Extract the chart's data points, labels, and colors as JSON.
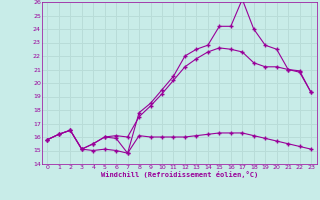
{
  "xlabel": "Windchill (Refroidissement éolien,°C)",
  "background_color": "#c8ece8",
  "line_color": "#990099",
  "grid_color": "#b8dcd8",
  "xlim": [
    -0.5,
    23.5
  ],
  "ylim": [
    14,
    26
  ],
  "xticks": [
    0,
    1,
    2,
    3,
    4,
    5,
    6,
    7,
    8,
    9,
    10,
    11,
    12,
    13,
    14,
    15,
    16,
    17,
    18,
    19,
    20,
    21,
    22,
    23
  ],
  "yticks": [
    14,
    15,
    16,
    17,
    18,
    19,
    20,
    21,
    22,
    23,
    24,
    25,
    26
  ],
  "lines": [
    {
      "x": [
        0,
        1,
        2,
        3,
        4,
        5,
        6,
        7,
        8,
        9,
        10,
        11,
        12,
        13,
        14,
        15,
        16,
        17,
        18,
        19,
        20,
        21,
        22,
        23
      ],
      "y": [
        15.8,
        16.2,
        16.5,
        15.1,
        15.0,
        15.1,
        15.0,
        14.8,
        16.1,
        16.0,
        16.0,
        16.0,
        16.0,
        16.1,
        16.2,
        16.3,
        16.3,
        16.3,
        16.1,
        15.9,
        15.7,
        15.5,
        15.3,
        15.1
      ]
    },
    {
      "x": [
        0,
        1,
        2,
        3,
        4,
        5,
        6,
        7,
        8,
        9,
        10,
        11,
        12,
        13,
        14,
        15,
        16,
        17,
        18,
        19,
        20,
        21,
        22,
        23
      ],
      "y": [
        15.8,
        16.2,
        16.5,
        15.1,
        15.5,
        16.0,
        16.1,
        16.0,
        17.5,
        18.3,
        19.2,
        20.2,
        21.2,
        21.8,
        22.3,
        22.6,
        22.5,
        22.3,
        21.5,
        21.2,
        21.2,
        21.0,
        20.8,
        19.3
      ]
    },
    {
      "x": [
        0,
        1,
        2,
        3,
        4,
        5,
        6,
        7,
        8,
        9,
        10,
        11,
        12,
        13,
        14,
        15,
        16,
        17,
        18,
        19,
        20,
        21,
        22,
        23
      ],
      "y": [
        15.8,
        16.2,
        16.5,
        15.1,
        15.5,
        16.0,
        15.9,
        14.8,
        17.8,
        18.5,
        19.5,
        20.5,
        22.0,
        22.5,
        22.8,
        24.2,
        24.2,
        26.2,
        24.0,
        22.8,
        22.5,
        21.0,
        20.9,
        19.3
      ]
    }
  ]
}
